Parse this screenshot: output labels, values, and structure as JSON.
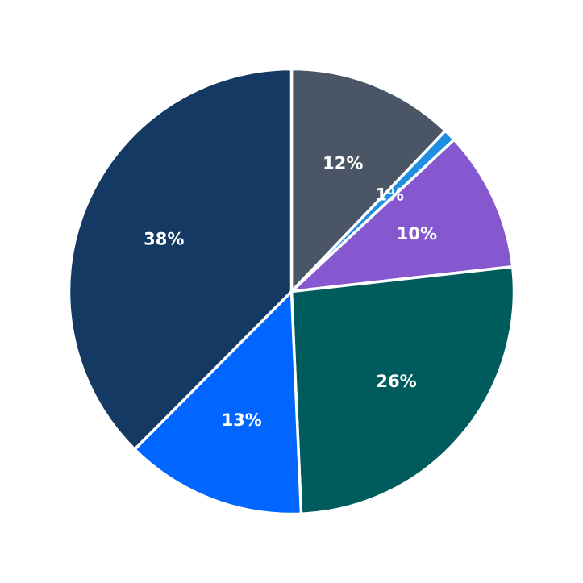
{
  "chart_data": {
    "type": "pie",
    "title": "",
    "start_angle_deg": 90,
    "direction": "clockwise",
    "slices": [
      {
        "label": "12%",
        "value": 12.3,
        "color": "#4a5565"
      },
      {
        "label": "1%",
        "value": 0.9,
        "color": "#1f8ee0"
      },
      {
        "label": "10%",
        "value": 10.3,
        "color": "#8558d0"
      },
      {
        "label": "26%",
        "value": 26.4,
        "color": "#005c5c"
      },
      {
        "label": "13%",
        "value": 13.3,
        "color": "#0066ff"
      },
      {
        "label": "38%",
        "value": 38.0,
        "color": "#143a63"
      }
    ]
  }
}
